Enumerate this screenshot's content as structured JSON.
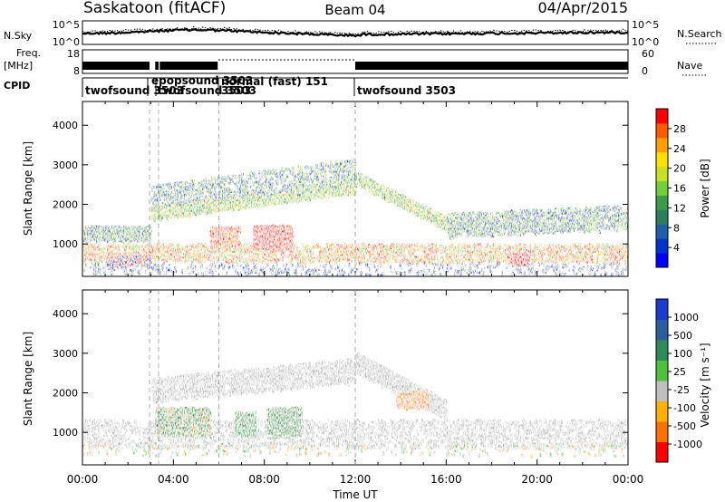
{
  "header": {
    "station": "Saskatoon (fitACF)",
    "beam": "Beam 04",
    "date": "04/Apr/2015"
  },
  "strips": {
    "nsky_label": "N.Sky",
    "nsearch_label": "N.Search",
    "noise_ticks": [
      "10^5",
      "10^0"
    ],
    "freq_label_1": "Freq.",
    "freq_label_2": "[MHz]",
    "freq_ticks": [
      "18",
      "8"
    ],
    "nave_label": "Nave",
    "nave_ticks": [
      "60",
      "0"
    ],
    "cpid_label": "CPID",
    "cpid_segments": [
      {
        "label": "twofsound 3503",
        "start_hr": 0.0
      },
      {
        "label": "epopsound 3503",
        "start_hr": 3.3
      },
      {
        "label": "twofsound 3503",
        "start_hr": 3.3
      },
      {
        "label": "normal (fast) 151",
        "start_hr": 5.4
      },
      {
        "label": "3503",
        "start_hr": 6.0
      },
      {
        "label": "twofsound 3503",
        "start_hr": 12.0
      }
    ]
  },
  "chart_data": [
    {
      "type": "heatmap",
      "title": "",
      "ylabel": "Slant Range [km]",
      "xlabel": "",
      "y_ticks": [
        1000,
        2000,
        3000,
        4000
      ],
      "ylim": [
        180,
        4600
      ],
      "xlim_hours": [
        0,
        24
      ],
      "colorbar": {
        "label": "Power [dB]",
        "ticks": [
          "28",
          "24",
          "20",
          "16",
          "12",
          "8",
          "4"
        ],
        "colors": [
          "#0000ff",
          "#0033cc",
          "#1f5fa8",
          "#2e7d5b",
          "#3a9b4a",
          "#6fcf3c",
          "#c8e024",
          "#ffe000",
          "#ffa000",
          "#ff5a00",
          "#ff0000"
        ]
      },
      "features": [
        {
          "name": "lower-band",
          "from_hr": 0,
          "to_hr": 24,
          "range_km": [
            800,
            1300
          ],
          "power_db": 22
        },
        {
          "name": "rising-band",
          "from_hr": 3,
          "to_hr": 12,
          "range_km": [
            1800,
            2700
          ],
          "power_db": 16
        },
        {
          "name": "descending-band",
          "from_hr": 12,
          "to_hr": 16,
          "range_km": [
            2700,
            1300
          ],
          "power_db": 14
        },
        {
          "name": "strong-patch",
          "from_hr": 7.5,
          "to_hr": 9.2,
          "range_km": [
            900,
            1500
          ],
          "power_db": 28
        },
        {
          "name": "dawn-patch",
          "from_hr": 18.8,
          "to_hr": 19.6,
          "range_km": [
            400,
            800
          ],
          "power_db": 28
        }
      ]
    },
    {
      "type": "heatmap",
      "title": "",
      "ylabel": "Slant Range [km]",
      "xlabel": "Time UT",
      "x_ticks": [
        "00:00",
        "04:00",
        "08:00",
        "12:00",
        "16:00",
        "20:00",
        "00:00"
      ],
      "y_ticks": [
        1000,
        2000,
        3000,
        4000
      ],
      "ylim": [
        180,
        4600
      ],
      "xlim_hours": [
        0,
        24
      ],
      "colorbar": {
        "label": "Velocity [m s⁻¹]",
        "ticks": [
          "1000",
          "500",
          "100",
          "25",
          "-25",
          "-100",
          "-500",
          "-1000"
        ],
        "colors": [
          "#1a3ccf",
          "#2a5f9e",
          "#2e8b57",
          "#4fbf3c",
          "#bfbfbf",
          "#ffb000",
          "#ff7000",
          "#ff0000"
        ]
      },
      "features": [
        {
          "name": "ground-scatter",
          "from_hr": 0,
          "to_hr": 24,
          "range_km": [
            800,
            2800
          ],
          "velocity": 0
        },
        {
          "name": "green-patch-1",
          "from_hr": 3.2,
          "to_hr": 5.6,
          "range_km": [
            900,
            1700
          ],
          "velocity": 100
        },
        {
          "name": "green-patch-2",
          "from_hr": 6.7,
          "to_hr": 7.6,
          "range_km": [
            900,
            1600
          ],
          "velocity": 100
        },
        {
          "name": "green-patch-3",
          "from_hr": 8.1,
          "to_hr": 9.6,
          "range_km": [
            900,
            1700
          ],
          "velocity": 100
        },
        {
          "name": "orange-patch",
          "from_hr": 13.8,
          "to_hr": 15.2,
          "range_km": [
            1600,
            2100
          ],
          "velocity": -100
        }
      ]
    }
  ]
}
